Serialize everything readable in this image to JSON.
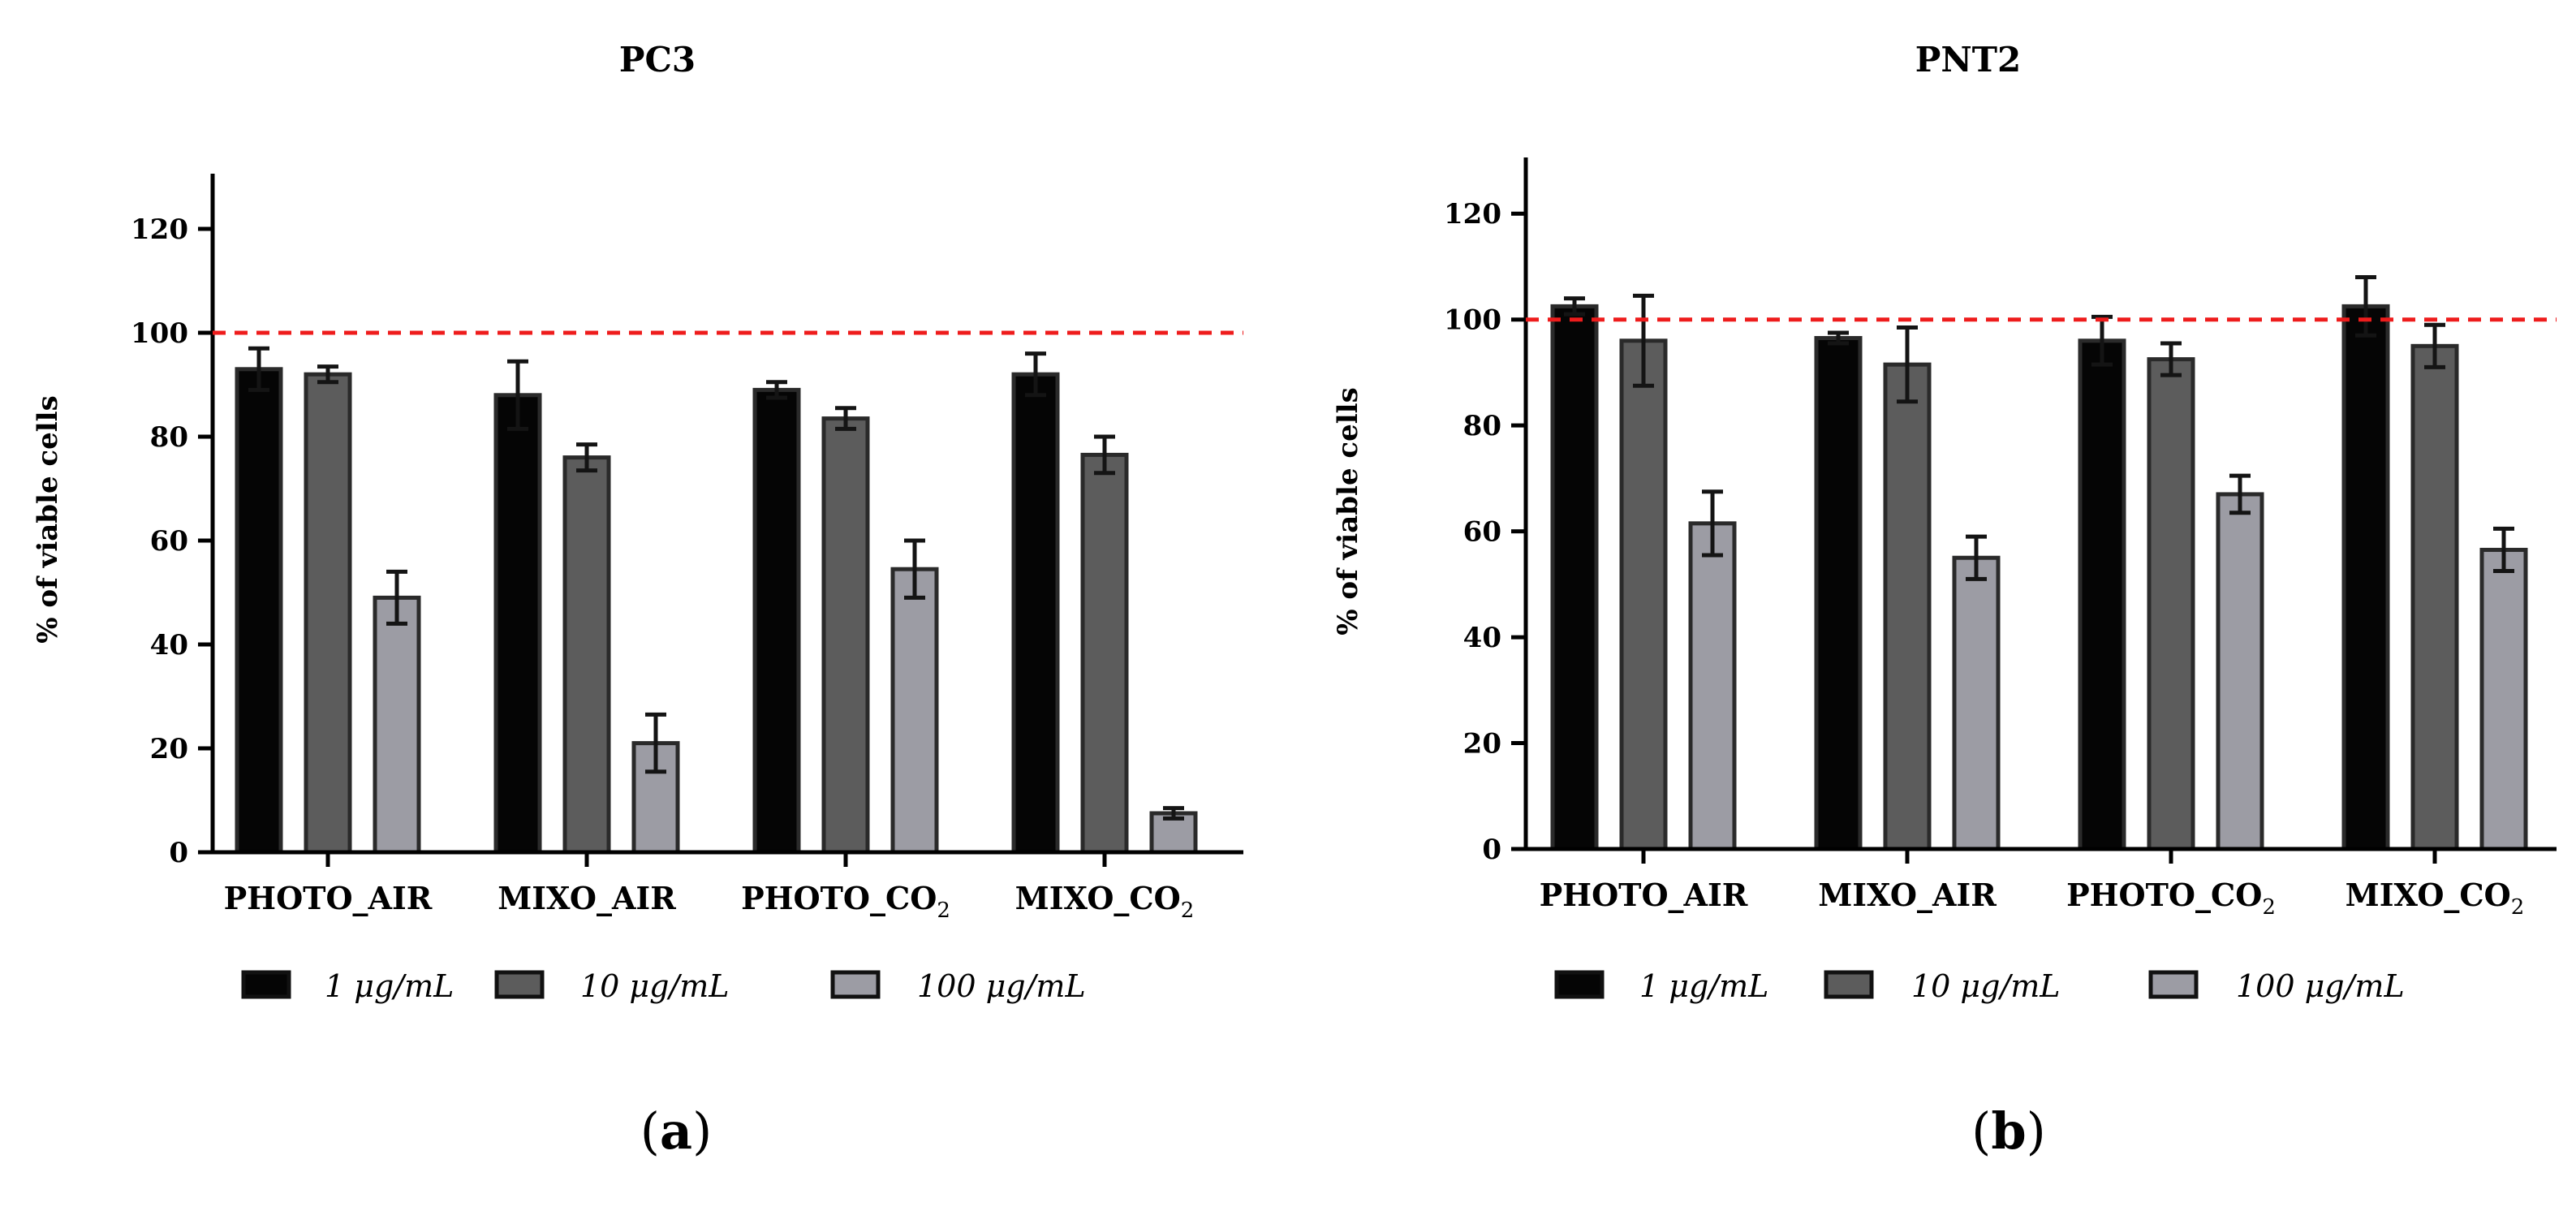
{
  "reference_line": {
    "value": 100,
    "color": "#ee1c1c"
  },
  "series_colors": [
    "#050505",
    "#5c5c5c",
    "#9c9ca4"
  ],
  "chart_data": [
    {
      "type": "bar",
      "title": "PC3",
      "ylabel": "% of viable cells",
      "xlabel": "",
      "ylim": [
        0,
        130
      ],
      "yticks": [
        0,
        20,
        40,
        60,
        80,
        100,
        120
      ],
      "categories": [
        {
          "main": "PHOTO_AIR",
          "sub": ""
        },
        {
          "main": "MIXO_AIR",
          "sub": ""
        },
        {
          "main": "PHOTO_CO",
          "sub": "2"
        },
        {
          "main": "MIXO_CO",
          "sub": "2"
        }
      ],
      "series": [
        {
          "name": "1 μg/mL",
          "values": [
            93,
            88,
            89,
            92
          ],
          "errors": [
            4,
            6.5,
            1.5,
            4
          ]
        },
        {
          "name": "10 μg/mL",
          "values": [
            92,
            76,
            83.5,
            76.5
          ],
          "errors": [
            1.5,
            2.5,
            2,
            3.5
          ]
        },
        {
          "name": "100 μg/mL",
          "values": [
            49,
            21,
            54.5,
            7.5
          ],
          "errors": [
            5,
            5.5,
            5.5,
            1
          ]
        }
      ],
      "grid": false,
      "legend": "bottom",
      "panel_label": {
        "open": "(",
        "letter": "a",
        "close": ")"
      }
    },
    {
      "type": "bar",
      "title": "PNT2",
      "ylabel": "% of viable cells",
      "xlabel": "",
      "ylim": [
        0,
        130
      ],
      "yticks": [
        0,
        20,
        40,
        60,
        80,
        100,
        120
      ],
      "categories": [
        {
          "main": "PHOTO_AIR",
          "sub": ""
        },
        {
          "main": "MIXO_AIR",
          "sub": ""
        },
        {
          "main": "PHOTO_CO",
          "sub": "2"
        },
        {
          "main": "MIXO_CO",
          "sub": "2"
        }
      ],
      "series": [
        {
          "name": "1 μg/mL",
          "values": [
            102.5,
            96.5,
            96,
            102.5
          ],
          "errors": [
            1.5,
            1,
            4.5,
            5.5
          ]
        },
        {
          "name": "10 μg/mL",
          "values": [
            96,
            91.5,
            92.5,
            95
          ],
          "errors": [
            8.5,
            7,
            3,
            4
          ]
        },
        {
          "name": "100 μg/mL",
          "values": [
            61.5,
            55,
            67,
            56.5
          ],
          "errors": [
            6,
            4,
            3.5,
            4
          ]
        }
      ],
      "grid": false,
      "legend": "bottom",
      "panel_label": {
        "open": "(",
        "letter": "b",
        "close": ")"
      }
    }
  ]
}
